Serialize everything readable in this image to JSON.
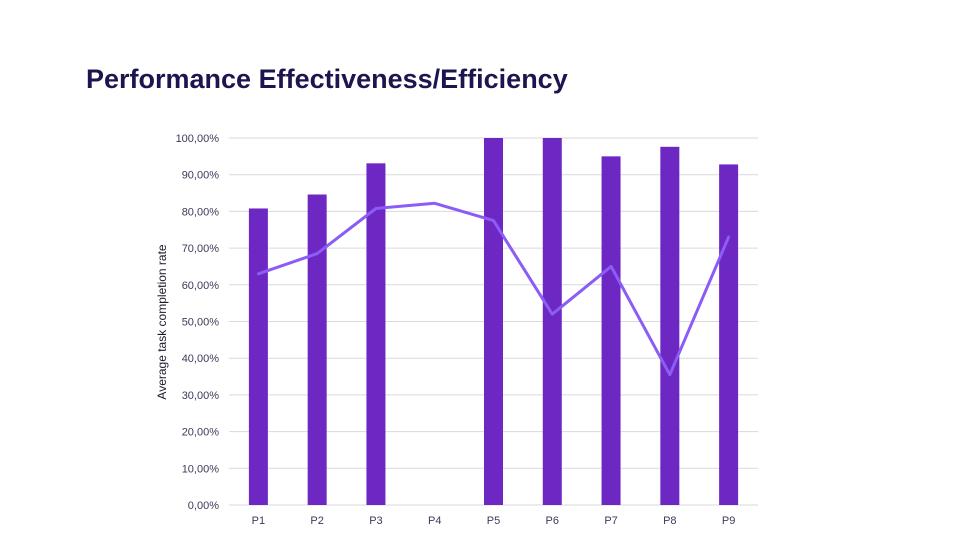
{
  "slide": {
    "title": "Performance Effectiveness/Efficiency"
  },
  "chart_data": {
    "type": "bar",
    "categories": [
      "P1",
      "P2",
      "P3",
      "P4",
      "P5",
      "P6",
      "P7",
      "P8",
      "P9"
    ],
    "series": [
      {
        "type": "bar",
        "values": [
          80.8,
          84.6,
          93.1,
          0,
          100,
          100,
          95,
          97.6,
          92.8
        ],
        "color": "#6d28c4"
      },
      {
        "type": "line",
        "values": [
          63,
          68.5,
          80.8,
          82.2,
          77.5,
          52,
          65,
          35.5,
          73
        ],
        "color": "#8b5cf6"
      }
    ],
    "ylabel": "Average task completion rate",
    "xlabel": "",
    "ylim": [
      0,
      100
    ],
    "yticks": [
      0,
      10,
      20,
      30,
      40,
      50,
      60,
      70,
      80,
      90,
      100
    ],
    "ytick_labels": [
      "0,00%",
      "10,00%",
      "20,00%",
      "30,00%",
      "40,00%",
      "50,00%",
      "60,00%",
      "70,00%",
      "80,00%",
      "90,00%",
      "100,00%"
    ],
    "grid": true,
    "legend": "none"
  }
}
